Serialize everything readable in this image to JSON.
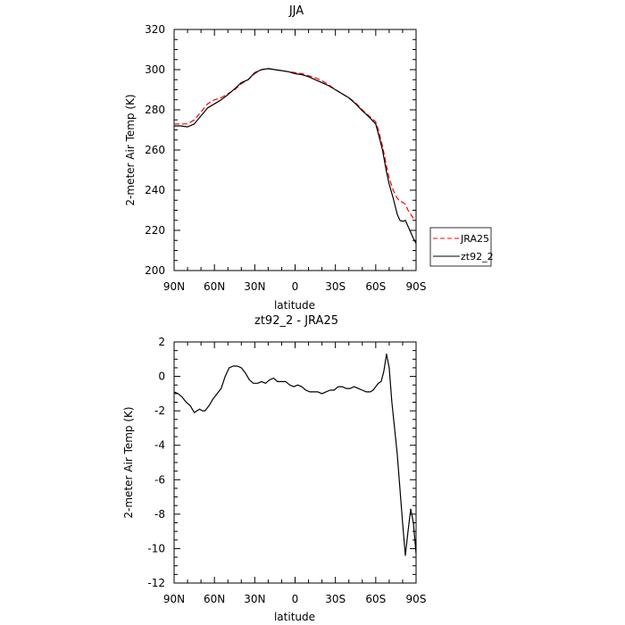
{
  "chart_data": [
    {
      "type": "line",
      "title": "JJA",
      "xlabel": "latitude",
      "ylabel": "2-meter Air Temp (K)",
      "xlim": [
        90,
        -90
      ],
      "ylim": [
        200,
        320
      ],
      "xticks": [
        90,
        60,
        30,
        0,
        -30,
        -60,
        -90
      ],
      "xticklabels": [
        "90N",
        "60N",
        "30N",
        "0",
        "30S",
        "60S",
        "90S"
      ],
      "yticks": [
        200,
        220,
        240,
        260,
        280,
        300,
        320
      ],
      "yticklabels": [
        "200",
        "220",
        "240",
        "260",
        "280",
        "300",
        "320"
      ],
      "grid": false,
      "legend": "right",
      "series": [
        {
          "name": "JRA25",
          "color": "#ff0000",
          "dash": "dashed",
          "x": [
            90,
            85,
            80,
            75,
            70,
            65,
            60,
            55,
            50,
            45,
            40,
            35,
            30,
            25,
            20,
            15,
            10,
            5,
            0,
            -5,
            -10,
            -15,
            -20,
            -25,
            -30,
            -35,
            -40,
            -45,
            -50,
            -55,
            -60,
            -62,
            -65,
            -68,
            -70,
            -73,
            -76,
            -78,
            -80,
            -82,
            -84,
            -86,
            -88,
            -90
          ],
          "values": [
            273,
            273,
            273,
            275,
            279,
            283,
            285,
            286,
            288,
            290,
            293,
            295,
            298,
            300,
            300.5,
            300,
            299.5,
            299,
            298.5,
            298,
            297,
            296,
            294.5,
            292.5,
            290,
            288,
            286,
            283.5,
            280,
            277,
            274,
            270,
            262,
            252,
            246,
            240,
            236,
            234.5,
            234,
            233,
            230,
            228,
            226,
            224.5
          ]
        },
        {
          "name": "zt92_2",
          "color": "#000000",
          "dash": "solid",
          "x": [
            90,
            85,
            80,
            75,
            70,
            65,
            60,
            55,
            50,
            45,
            40,
            35,
            30,
            25,
            20,
            15,
            10,
            5,
            0,
            -5,
            -10,
            -15,
            -20,
            -25,
            -30,
            -35,
            -40,
            -45,
            -50,
            -55,
            -60,
            -62,
            -65,
            -68,
            -70,
            -73,
            -76,
            -78,
            -80,
            -82,
            -84,
            -86,
            -88,
            -90
          ],
          "values": [
            272,
            272,
            271.5,
            273,
            277,
            281,
            283,
            285,
            287.5,
            290.5,
            293.5,
            295,
            298.5,
            300,
            300.5,
            300,
            299.5,
            299,
            298,
            297.5,
            296.5,
            295,
            293.5,
            292,
            290,
            288,
            286,
            283,
            279.5,
            276.5,
            273,
            268,
            260,
            249,
            243,
            236,
            228,
            225,
            224.5,
            225,
            222,
            219,
            216,
            213.5
          ]
        }
      ]
    },
    {
      "type": "line",
      "title": "zt92_2 - JRA25",
      "xlabel": "latitude",
      "ylabel": "2-meter Air Temp (K)",
      "xlim": [
        90,
        -90
      ],
      "ylim": [
        -12,
        2
      ],
      "xticks": [
        90,
        60,
        30,
        0,
        -30,
        -60,
        -90
      ],
      "xticklabels": [
        "90N",
        "60N",
        "30N",
        "0",
        "30S",
        "60S",
        "90S"
      ],
      "yticks": [
        -12,
        -10,
        -8,
        -6,
        -4,
        -2,
        0,
        2
      ],
      "yticklabels": [
        "-12",
        "-10",
        "-8",
        "-6",
        "-4",
        "-2",
        "0",
        "2"
      ],
      "grid": false,
      "series": [
        {
          "color": "#000000",
          "dash": "solid",
          "x": [
            90,
            87,
            84,
            81,
            78,
            75,
            73,
            71,
            69,
            67,
            64,
            61,
            58,
            55,
            52,
            49,
            46,
            43,
            40,
            37,
            34,
            31,
            28,
            25,
            22,
            19,
            16,
            13,
            10,
            7,
            4,
            1,
            -2,
            -5,
            -8,
            -11,
            -14,
            -17,
            -20,
            -23,
            -26,
            -29,
            -32,
            -35,
            -38,
            -41,
            -44,
            -47,
            -50,
            -53,
            -56,
            -58,
            -60,
            -62,
            -64,
            -66,
            -68,
            -70,
            -72,
            -74,
            -76,
            -78,
            -80,
            -82,
            -84,
            -86,
            -88,
            -90
          ],
          "values": [
            -0.9,
            -1.0,
            -1.2,
            -1.5,
            -1.7,
            -2.1,
            -2.0,
            -1.9,
            -2.0,
            -2.0,
            -1.7,
            -1.3,
            -1.0,
            -0.7,
            0.0,
            0.5,
            0.6,
            0.6,
            0.5,
            0.2,
            -0.2,
            -0.4,
            -0.4,
            -0.3,
            -0.4,
            -0.2,
            -0.1,
            -0.3,
            -0.3,
            -0.3,
            -0.5,
            -0.6,
            -0.5,
            -0.6,
            -0.8,
            -0.9,
            -0.9,
            -0.9,
            -1.0,
            -0.9,
            -0.8,
            -0.8,
            -0.6,
            -0.6,
            -0.7,
            -0.7,
            -0.6,
            -0.7,
            -0.8,
            -0.9,
            -0.9,
            -0.8,
            -0.6,
            -0.4,
            -0.3,
            0.3,
            1.3,
            0.5,
            -1.5,
            -3.0,
            -4.5,
            -6.5,
            -8.5,
            -10.4,
            -9.0,
            -7.7,
            -8.5,
            -10.3
          ]
        }
      ]
    }
  ]
}
